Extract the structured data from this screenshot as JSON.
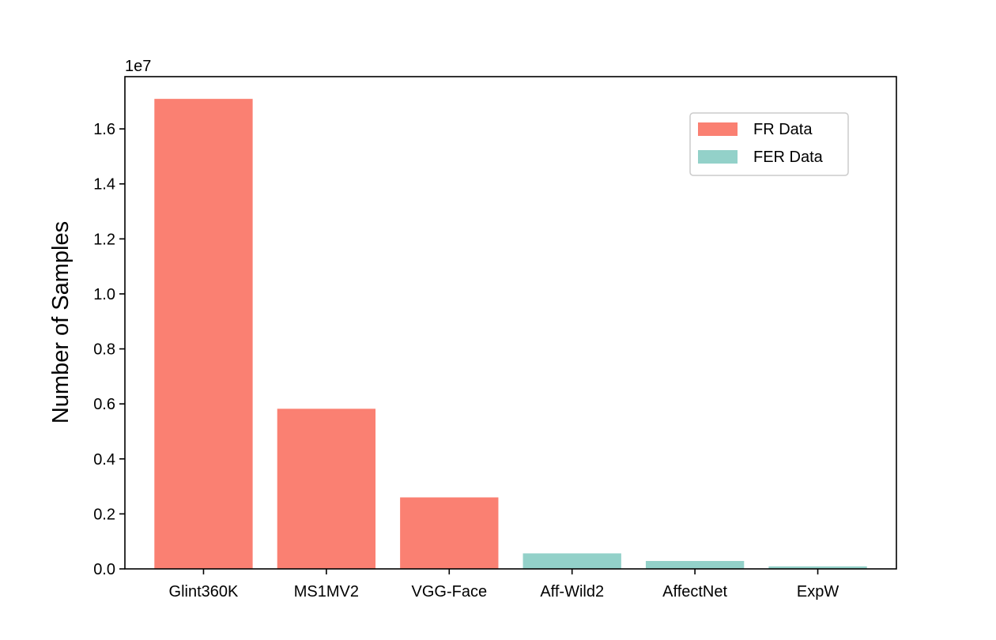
{
  "chart_data": {
    "type": "bar",
    "categories": [
      "Glint360K",
      "MS1MV2",
      "VGG-Face",
      "Aff-Wild2",
      "AffectNet",
      "ExpW"
    ],
    "values": [
      17091657,
      5822653,
      2600000,
      564000,
      287651,
      91795
    ],
    "bar_colors": [
      "#fa8072",
      "#fa8072",
      "#fa8072",
      "#93d1c9",
      "#93d1c9",
      "#93d1c9"
    ],
    "series": [
      {
        "name": "FR Data",
        "categories": [
          "Glint360K",
          "MS1MV2",
          "VGG-Face"
        ],
        "color": "#fa8072"
      },
      {
        "name": "FER Data",
        "categories": [
          "Aff-Wild2",
          "AffectNet",
          "ExpW"
        ],
        "color": "#93d1c9"
      }
    ],
    "xlabel": "",
    "ylabel": "Number of Samples",
    "ylim": [
      0,
      17900000
    ],
    "yticks": [
      0,
      2000000,
      4000000,
      6000000,
      8000000,
      10000000,
      12000000,
      14000000,
      16000000
    ],
    "ytick_labels": [
      "0.0",
      "0.2",
      "0.4",
      "0.6",
      "0.8",
      "1.0",
      "1.2",
      "1.4",
      "1.6"
    ],
    "y_offset_label": "1e7",
    "legend_position": "upper right",
    "grid": false
  }
}
